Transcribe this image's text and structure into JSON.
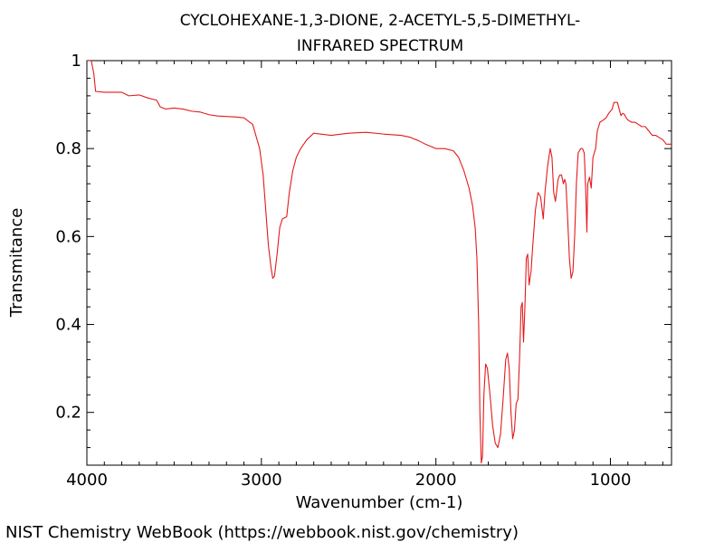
{
  "chart_data": {
    "type": "line",
    "title": "CYCLOHEXANE-1,3-DIONE, 2-ACETYL-5,5-DIMETHYL-",
    "subtitle": "INFRARED SPECTRUM",
    "xlabel": "Wavenumber (cm-1)",
    "ylabel": "Transmitance",
    "xlim": [
      4000,
      650
    ],
    "ylim": [
      0.08,
      1.0
    ],
    "x_major_ticks": [
      4000,
      3000,
      2000,
      1000
    ],
    "x_tick_labels": [
      "4000",
      "3000",
      "2000",
      "1000"
    ],
    "y_major_ticks": [
      1.0,
      0.8,
      0.6,
      0.4,
      0.2
    ],
    "y_tick_labels": [
      "1",
      "0.8",
      "0.6",
      "0.4",
      "0.2"
    ],
    "series": [
      {
        "name": "IR spectrum",
        "color": "#e31a1c",
        "points": [
          [
            4000,
            1.0
          ],
          [
            3975,
            1.0
          ],
          [
            3960,
            0.97
          ],
          [
            3950,
            0.93
          ],
          [
            3900,
            0.928
          ],
          [
            3800,
            0.928
          ],
          [
            3760,
            0.92
          ],
          [
            3700,
            0.922
          ],
          [
            3650,
            0.915
          ],
          [
            3600,
            0.91
          ],
          [
            3580,
            0.895
          ],
          [
            3550,
            0.89
          ],
          [
            3500,
            0.892
          ],
          [
            3450,
            0.89
          ],
          [
            3400,
            0.885
          ],
          [
            3350,
            0.883
          ],
          [
            3300,
            0.877
          ],
          [
            3250,
            0.874
          ],
          [
            3150,
            0.872
          ],
          [
            3100,
            0.87
          ],
          [
            3050,
            0.855
          ],
          [
            3010,
            0.8
          ],
          [
            2990,
            0.74
          ],
          [
            2975,
            0.66
          ],
          [
            2960,
            0.58
          ],
          [
            2945,
            0.53
          ],
          [
            2935,
            0.505
          ],
          [
            2925,
            0.51
          ],
          [
            2910,
            0.56
          ],
          [
            2895,
            0.62
          ],
          [
            2880,
            0.64
          ],
          [
            2855,
            0.645
          ],
          [
            2840,
            0.7
          ],
          [
            2820,
            0.75
          ],
          [
            2800,
            0.78
          ],
          [
            2775,
            0.8
          ],
          [
            2740,
            0.82
          ],
          [
            2700,
            0.835
          ],
          [
            2600,
            0.83
          ],
          [
            2500,
            0.835
          ],
          [
            2400,
            0.837
          ],
          [
            2300,
            0.833
          ],
          [
            2200,
            0.83
          ],
          [
            2150,
            0.826
          ],
          [
            2100,
            0.818
          ],
          [
            2060,
            0.81
          ],
          [
            2000,
            0.8
          ],
          [
            1950,
            0.8
          ],
          [
            1900,
            0.795
          ],
          [
            1870,
            0.78
          ],
          [
            1840,
            0.75
          ],
          [
            1810,
            0.71
          ],
          [
            1790,
            0.67
          ],
          [
            1775,
            0.62
          ],
          [
            1765,
            0.55
          ],
          [
            1755,
            0.4
          ],
          [
            1748,
            0.2
          ],
          [
            1740,
            0.085
          ],
          [
            1733,
            0.1
          ],
          [
            1725,
            0.24
          ],
          [
            1715,
            0.31
          ],
          [
            1705,
            0.3
          ],
          [
            1690,
            0.24
          ],
          [
            1675,
            0.17
          ],
          [
            1660,
            0.13
          ],
          [
            1645,
            0.12
          ],
          [
            1630,
            0.15
          ],
          [
            1615,
            0.23
          ],
          [
            1600,
            0.32
          ],
          [
            1590,
            0.335
          ],
          [
            1580,
            0.3
          ],
          [
            1570,
            0.2
          ],
          [
            1560,
            0.14
          ],
          [
            1550,
            0.16
          ],
          [
            1540,
            0.22
          ],
          [
            1530,
            0.23
          ],
          [
            1520,
            0.33
          ],
          [
            1512,
            0.44
          ],
          [
            1505,
            0.45
          ],
          [
            1498,
            0.36
          ],
          [
            1490,
            0.44
          ],
          [
            1482,
            0.55
          ],
          [
            1474,
            0.56
          ],
          [
            1466,
            0.49
          ],
          [
            1455,
            0.52
          ],
          [
            1445,
            0.58
          ],
          [
            1430,
            0.66
          ],
          [
            1415,
            0.7
          ],
          [
            1400,
            0.69
          ],
          [
            1385,
            0.64
          ],
          [
            1375,
            0.7
          ],
          [
            1360,
            0.76
          ],
          [
            1345,
            0.8
          ],
          [
            1335,
            0.78
          ],
          [
            1325,
            0.7
          ],
          [
            1315,
            0.68
          ],
          [
            1300,
            0.73
          ],
          [
            1290,
            0.74
          ],
          [
            1280,
            0.74
          ],
          [
            1270,
            0.72
          ],
          [
            1262,
            0.73
          ],
          [
            1255,
            0.72
          ],
          [
            1245,
            0.64
          ],
          [
            1235,
            0.55
          ],
          [
            1225,
            0.505
          ],
          [
            1215,
            0.52
          ],
          [
            1205,
            0.6
          ],
          [
            1195,
            0.72
          ],
          [
            1185,
            0.79
          ],
          [
            1170,
            0.8
          ],
          [
            1160,
            0.8
          ],
          [
            1150,
            0.79
          ],
          [
            1142,
            0.71
          ],
          [
            1135,
            0.61
          ],
          [
            1130,
            0.72
          ],
          [
            1120,
            0.735
          ],
          [
            1110,
            0.71
          ],
          [
            1100,
            0.78
          ],
          [
            1085,
            0.8
          ],
          [
            1075,
            0.84
          ],
          [
            1060,
            0.86
          ],
          [
            1040,
            0.865
          ],
          [
            1025,
            0.87
          ],
          [
            1010,
            0.88
          ],
          [
            1000,
            0.885
          ],
          [
            990,
            0.89
          ],
          [
            980,
            0.905
          ],
          [
            960,
            0.905
          ],
          [
            950,
            0.89
          ],
          [
            940,
            0.875
          ],
          [
            930,
            0.88
          ],
          [
            920,
            0.878
          ],
          [
            910,
            0.87
          ],
          [
            900,
            0.865
          ],
          [
            880,
            0.86
          ],
          [
            860,
            0.86
          ],
          [
            840,
            0.855
          ],
          [
            820,
            0.85
          ],
          [
            800,
            0.85
          ],
          [
            780,
            0.84
          ],
          [
            760,
            0.83
          ],
          [
            740,
            0.83
          ],
          [
            720,
            0.825
          ],
          [
            700,
            0.82
          ],
          [
            680,
            0.81
          ],
          [
            660,
            0.81
          ],
          [
            650,
            0.81
          ]
        ]
      }
    ]
  },
  "footer": {
    "credit": "NIST Chemistry WebBook (https://webbook.nist.gov/chemistry)"
  }
}
